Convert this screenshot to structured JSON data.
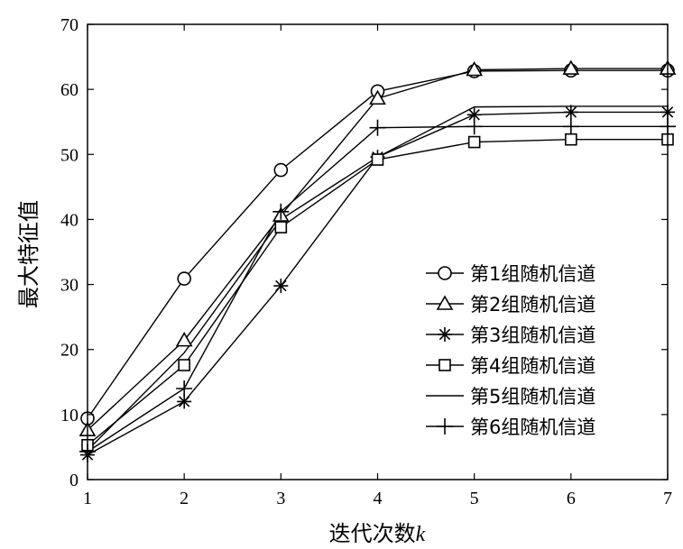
{
  "chart_data": {
    "type": "line",
    "ylabel": "最大特征值",
    "xlabel_main": "迭代次数",
    "xlabel_var": "k",
    "xlim": [
      1,
      7
    ],
    "ylim": [
      0,
      70
    ],
    "x_ticks": [
      1,
      2,
      3,
      4,
      5,
      6,
      7
    ],
    "y_ticks": [
      0,
      10,
      20,
      30,
      40,
      50,
      60,
      70
    ],
    "grid": false,
    "legend_position": "right",
    "x": [
      1,
      2,
      3,
      4,
      5,
      6,
      7
    ],
    "series": [
      {
        "name": "第1组随机信道",
        "marker": "circle",
        "values": [
          9.4,
          30.9,
          47.6,
          59.7,
          62.8,
          62.9,
          62.9
        ]
      },
      {
        "name": "第2组随机信道",
        "marker": "triangle",
        "values": [
          7.6,
          21.4,
          40.6,
          58.6,
          63.0,
          63.2,
          63.2
        ]
      },
      {
        "name": "第3组随机信道",
        "marker": "star",
        "values": [
          3.8,
          12.0,
          29.8,
          49.6,
          56.1,
          56.5,
          56.5
        ]
      },
      {
        "name": "第4组随机信道",
        "marker": "square",
        "values": [
          5.3,
          17.6,
          38.8,
          49.2,
          51.9,
          52.3,
          52.3
        ]
      },
      {
        "name": "第5组随机信道",
        "marker": "none",
        "values": [
          4.5,
          19.5,
          40.0,
          49.6,
          57.3,
          57.4,
          57.4
        ]
      },
      {
        "name": "第6组随机信道",
        "marker": "plus",
        "values": [
          4.3,
          14.0,
          41.2,
          54.1,
          54.3,
          54.3,
          54.3
        ]
      }
    ]
  }
}
